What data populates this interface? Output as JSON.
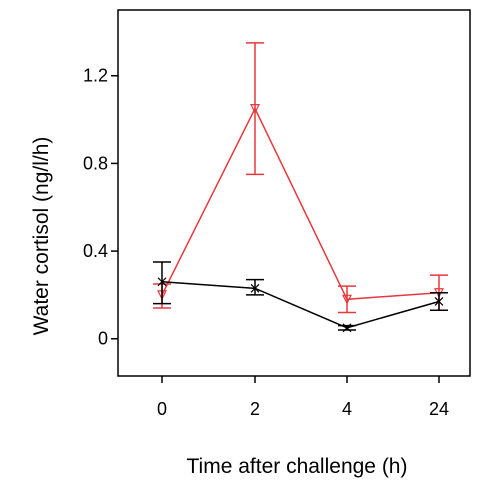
{
  "chart_data": {
    "type": "line",
    "title": "",
    "xlabel": "Time after challenge (h)",
    "ylabel": "Water cortisol (ng/l/h)",
    "categories": [
      "0",
      "2",
      "4",
      "24"
    ],
    "ylim": [
      -0.17,
      1.5
    ],
    "yticks": [
      0,
      0.4,
      0.8,
      1.2
    ],
    "ytick_labels": [
      "0",
      "0.4",
      "0.8",
      "1.2"
    ],
    "grid": false,
    "legend": "none",
    "series": [
      {
        "color": "#e8383d",
        "values": [
          0.2,
          1.05,
          0.18,
          0.21
        ],
        "err_low": [
          0.14,
          0.75,
          0.12,
          0.13
        ],
        "err_high": [
          0.25,
          1.35,
          0.24,
          0.29
        ],
        "marker": "triangle-down"
      },
      {
        "color": "#000000",
        "values": [
          0.26,
          0.23,
          0.05,
          0.17
        ],
        "err_low": [
          0.16,
          0.2,
          0.04,
          0.13
        ],
        "err_high": [
          0.35,
          0.27,
          0.06,
          0.21
        ],
        "marker": "x"
      }
    ]
  }
}
